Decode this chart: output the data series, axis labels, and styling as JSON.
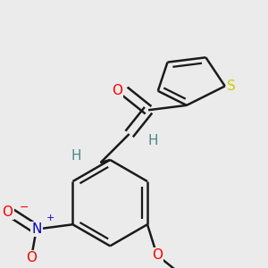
{
  "background_color": "#ebebeb",
  "bond_color": "#1a1a1a",
  "bond_width": 1.8,
  "atom_colors": {
    "O": "#ff0000",
    "S": "#cccc00",
    "N": "#0000cc",
    "H": "#4a8888",
    "C": "#1a1a1a"
  },
  "font_size_atoms": 11,
  "font_size_small": 9,
  "font_size_H": 11
}
